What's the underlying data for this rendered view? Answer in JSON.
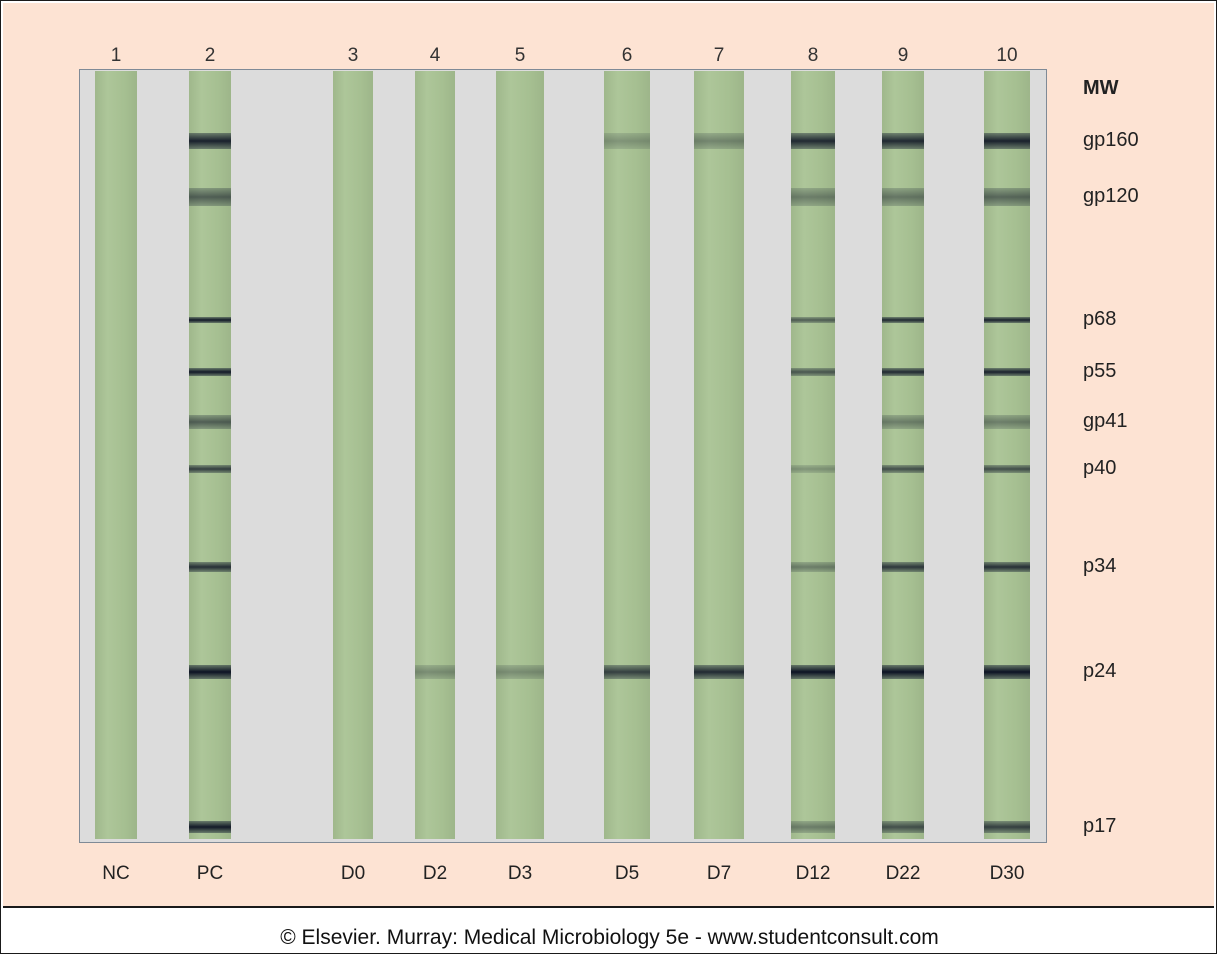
{
  "lanes": [
    {
      "num": "1",
      "label": "NC",
      "bands": []
    },
    {
      "num": "2",
      "label": "PC",
      "bands": [
        {
          "mw": "gp160",
          "level": 0.9
        },
        {
          "mw": "gp120",
          "level": 0.5
        },
        {
          "mw": "p68",
          "level": 0.95
        },
        {
          "mw": "p55",
          "level": 0.95
        },
        {
          "mw": "gp41",
          "level": 0.5
        },
        {
          "mw": "p40",
          "level": 0.7
        },
        {
          "mw": "p34",
          "level": 0.8
        },
        {
          "mw": "p24",
          "level": 1.0
        },
        {
          "mw": "p17",
          "level": 0.95
        }
      ]
    },
    {
      "num": "3",
      "label": "D0",
      "bands": []
    },
    {
      "num": "4",
      "label": "D2",
      "bands": [
        {
          "mw": "p24",
          "level": 0.2
        }
      ]
    },
    {
      "num": "5",
      "label": "D3",
      "bands": [
        {
          "mw": "p24",
          "level": 0.2
        }
      ]
    },
    {
      "num": "6",
      "label": "D5",
      "bands": [
        {
          "mw": "gp160",
          "level": 0.15
        },
        {
          "mw": "p24",
          "level": 0.7
        }
      ]
    },
    {
      "num": "7",
      "label": "D7",
      "bands": [
        {
          "mw": "gp160",
          "level": 0.25
        },
        {
          "mw": "p24",
          "level": 0.85
        }
      ]
    },
    {
      "num": "8",
      "label": "D12",
      "bands": [
        {
          "mw": "gp160",
          "level": 0.85
        },
        {
          "mw": "gp120",
          "level": 0.3
        },
        {
          "mw": "p68",
          "level": 0.5
        },
        {
          "mw": "p55",
          "level": 0.55
        },
        {
          "mw": "p40",
          "level": 0.15
        },
        {
          "mw": "p34",
          "level": 0.3
        },
        {
          "mw": "p24",
          "level": 1.0
        },
        {
          "mw": "p17",
          "level": 0.3
        }
      ]
    },
    {
      "num": "9",
      "label": "D22",
      "bands": [
        {
          "mw": "gp160",
          "level": 0.85
        },
        {
          "mw": "gp120",
          "level": 0.35
        },
        {
          "mw": "p68",
          "level": 0.85
        },
        {
          "mw": "p55",
          "level": 0.85
        },
        {
          "mw": "gp41",
          "level": 0.3
        },
        {
          "mw": "p40",
          "level": 0.6
        },
        {
          "mw": "p34",
          "level": 0.75
        },
        {
          "mw": "p24",
          "level": 1.0
        },
        {
          "mw": "p17",
          "level": 0.6
        }
      ]
    },
    {
      "num": "10",
      "label": "D30",
      "bands": [
        {
          "mw": "gp160",
          "level": 0.9
        },
        {
          "mw": "gp120",
          "level": 0.45
        },
        {
          "mw": "p68",
          "level": 0.9
        },
        {
          "mw": "p55",
          "level": 0.9
        },
        {
          "mw": "gp41",
          "level": 0.3
        },
        {
          "mw": "p40",
          "level": 0.6
        },
        {
          "mw": "p34",
          "level": 0.8
        },
        {
          "mw": "p24",
          "level": 1.0
        },
        {
          "mw": "p17",
          "level": 0.7
        }
      ]
    }
  ],
  "mw_title": "MW",
  "mw_markers": [
    "gp160",
    "gp120",
    "p68",
    "p55",
    "gp41",
    "p40",
    "p34",
    "p24",
    "p17"
  ],
  "credit": "© Elsevier. Murray: Medical Microbiology 5e - www.studentconsult.com"
}
